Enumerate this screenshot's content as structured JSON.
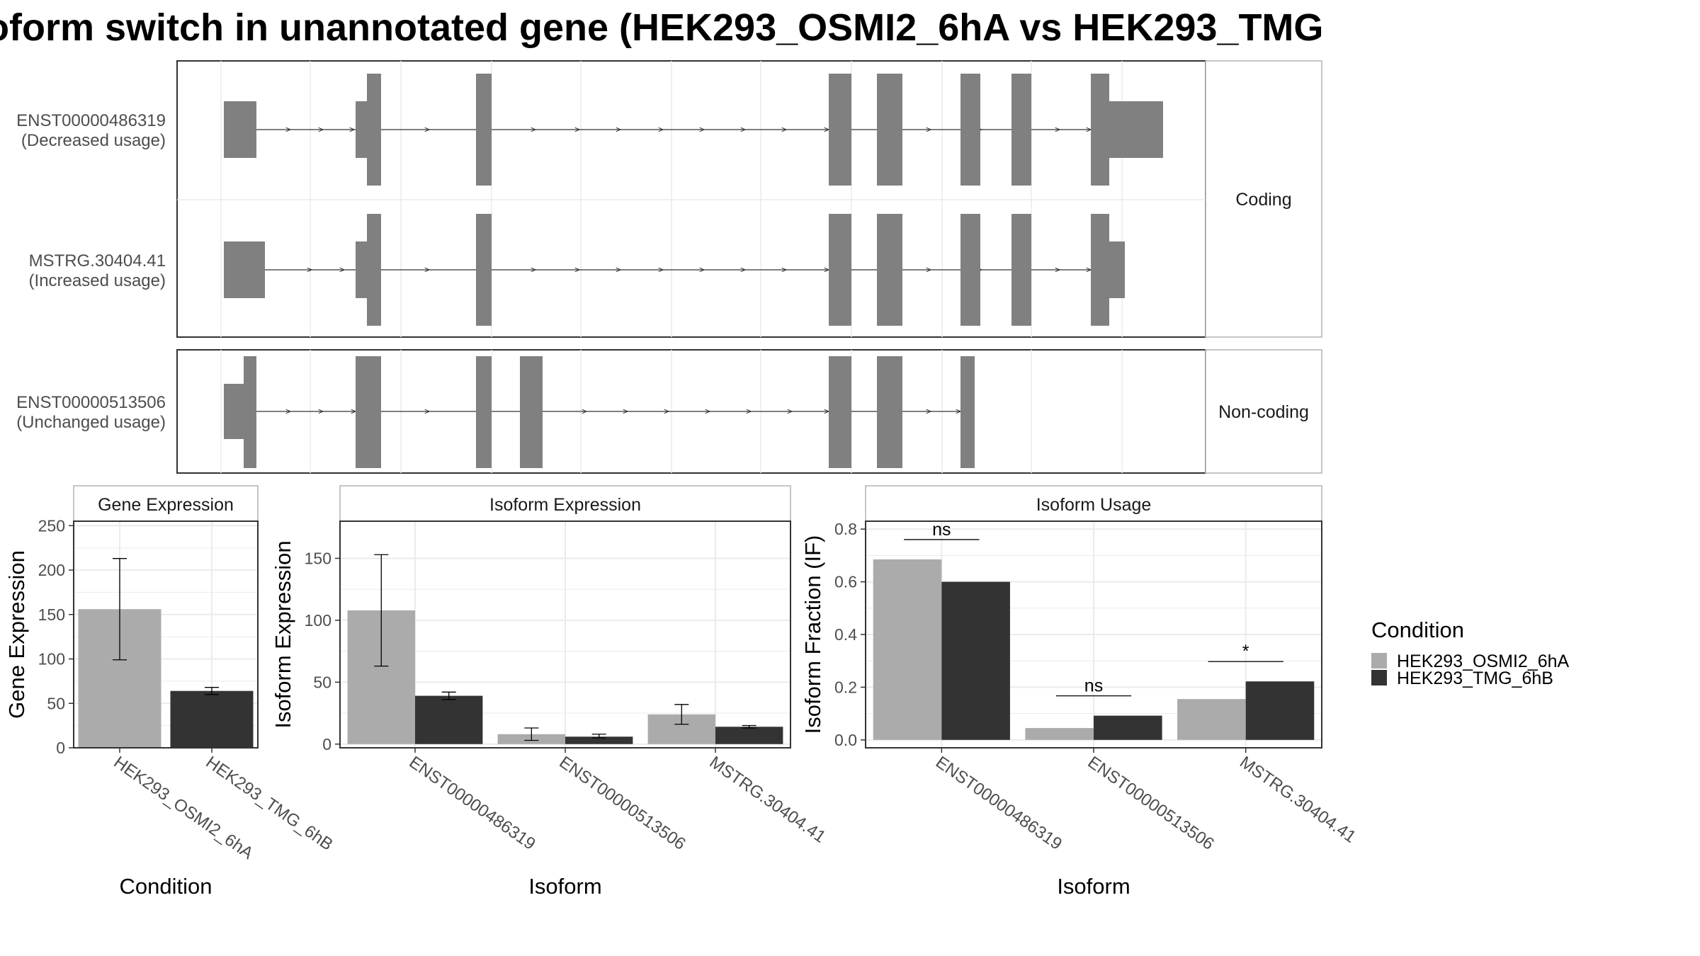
{
  "title": "oform switch in unannotated gene (HEK293_OSMI2_6hA vs HEK293_TMG",
  "colors": {
    "exon": "#808080",
    "condition_a": "#ababab",
    "condition_b": "#333333",
    "grid": "#ebebeb",
    "panel_border": "#333333",
    "strip_border": "#b3b3b3"
  },
  "transcript_panel": {
    "groups": [
      {
        "label": "Coding",
        "tracks": [
          {
            "name": "ENST00000486319",
            "usage": "(Decreased usage)"
          },
          {
            "name": "MSTRG.30404.41",
            "usage": "(Increased usage)"
          }
        ]
      },
      {
        "label": "Non-coding",
        "tracks": [
          {
            "name": "ENST00000513506",
            "usage": "(Unchanged usage)"
          }
        ]
      }
    ]
  },
  "legend": {
    "title": "Condition",
    "items": [
      "HEK293_OSMI2_6hA",
      "HEK293_TMG_6hB"
    ]
  },
  "chart_data": [
    {
      "type": "bar",
      "title": "Gene Expression",
      "xlabel": "Condition",
      "ylabel": "Gene Expression",
      "categories": [
        "HEK293_OSMI2_6hA",
        "HEK293_TMG_6hB"
      ],
      "values": [
        156,
        64
      ],
      "error_low": [
        99,
        60
      ],
      "error_high": [
        213,
        68
      ],
      "ylim": [
        0,
        255
      ],
      "yticks": [
        0,
        50,
        100,
        150,
        200,
        250
      ],
      "grid": true
    },
    {
      "type": "bar",
      "title": "Isoform Expression",
      "xlabel": "Isoform",
      "ylabel": "Isoform Expression",
      "categories": [
        "ENST00000486319",
        "ENST00000513506",
        "MSTRG.30404.41"
      ],
      "series": [
        {
          "name": "HEK293_OSMI2_6hA",
          "values": [
            108,
            8,
            24
          ],
          "error_low": [
            63,
            3,
            16
          ],
          "error_high": [
            153,
            13,
            32
          ]
        },
        {
          "name": "HEK293_TMG_6hB",
          "values": [
            39,
            6,
            14
          ],
          "error_low": [
            36,
            5,
            13
          ],
          "error_high": [
            42,
            8,
            15
          ]
        }
      ],
      "ylim": [
        -3,
        180
      ],
      "yticks": [
        0,
        50,
        100,
        150
      ],
      "grid": true,
      "legend": "right"
    },
    {
      "type": "bar",
      "title": "Isoform Usage",
      "xlabel": "Isoform",
      "ylabel": "Isoform Fraction (IF)",
      "categories": [
        "ENST00000486319",
        "ENST00000513506",
        "MSTRG.30404.41"
      ],
      "series": [
        {
          "name": "HEK293_OSMI2_6hA",
          "values": [
            0.685,
            0.045,
            0.155
          ]
        },
        {
          "name": "HEK293_TMG_6hB",
          "values": [
            0.6,
            0.092,
            0.222
          ]
        }
      ],
      "annotations": [
        "ns",
        "ns",
        "*"
      ],
      "ylim": [
        -0.03,
        0.83
      ],
      "yticks": [
        "0.0",
        "0.2",
        "0.4",
        "0.6",
        "0.8"
      ],
      "grid": true,
      "legend": "right"
    }
  ]
}
